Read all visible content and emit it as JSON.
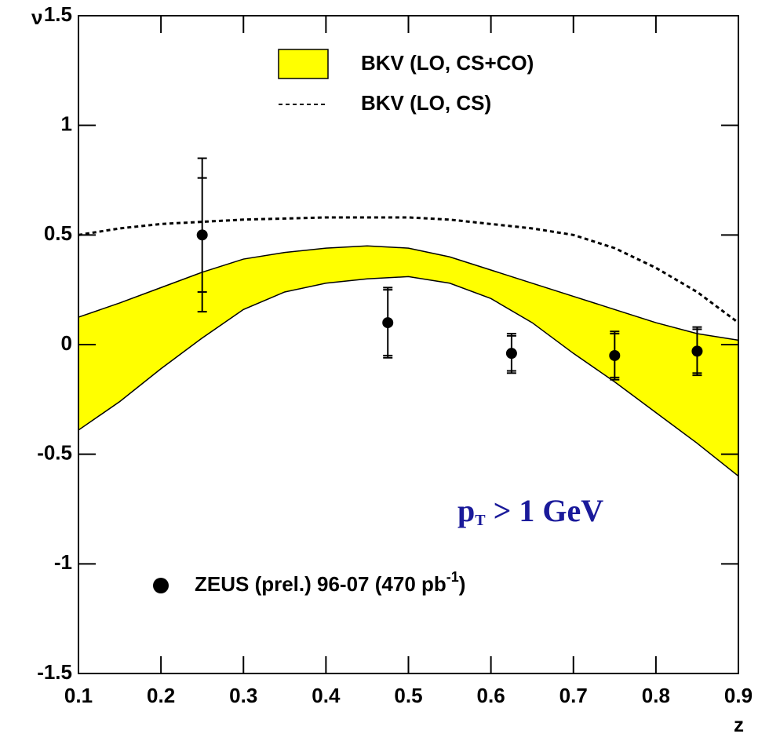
{
  "chart_data": {
    "type": "line",
    "y_label": "ν",
    "x_label": "z",
    "xlim": [
      0.1,
      0.9
    ],
    "ylim": [
      -1.5,
      1.5
    ],
    "xticks": [
      0.1,
      0.2,
      0.3,
      0.4,
      0.5,
      0.6,
      0.7,
      0.8,
      0.9
    ],
    "yticks": [
      -1.5,
      -1,
      -0.5,
      0,
      0.5,
      1,
      1.5
    ],
    "annotation": {
      "base": "p",
      "subscript": "T",
      "text": "> 1 GeV",
      "color": "#1a1a9a"
    },
    "series": [
      {
        "name": "BKV (LO, CS+CO)",
        "type": "band",
        "color": "#ffff00",
        "x": [
          0.1,
          0.15,
          0.2,
          0.25,
          0.3,
          0.35,
          0.4,
          0.45,
          0.5,
          0.55,
          0.6,
          0.65,
          0.7,
          0.75,
          0.8,
          0.85,
          0.9
        ],
        "upper": [
          0.125,
          0.19,
          0.26,
          0.33,
          0.39,
          0.42,
          0.44,
          0.45,
          0.44,
          0.4,
          0.34,
          0.28,
          0.22,
          0.16,
          0.1,
          0.05,
          0.02
        ],
        "lower": [
          -0.39,
          -0.26,
          -0.11,
          0.03,
          0.16,
          0.24,
          0.28,
          0.3,
          0.31,
          0.28,
          0.21,
          0.1,
          -0.04,
          -0.17,
          -0.31,
          -0.45,
          -0.6
        ]
      },
      {
        "name": "BKV (LO, CS)",
        "type": "line",
        "color": "#000000",
        "dashed": true,
        "x": [
          0.1,
          0.15,
          0.2,
          0.25,
          0.3,
          0.35,
          0.4,
          0.45,
          0.5,
          0.55,
          0.6,
          0.65,
          0.7,
          0.75,
          0.8,
          0.85,
          0.9
        ],
        "values": [
          0.5,
          0.53,
          0.55,
          0.56,
          0.57,
          0.575,
          0.58,
          0.58,
          0.58,
          0.57,
          0.55,
          0.53,
          0.5,
          0.44,
          0.35,
          0.24,
          0.1
        ]
      },
      {
        "name": "ZEUS (prel.) 96-07 (470 pb",
        "name_superscript": "-1",
        "name_suffix": ")",
        "type": "points",
        "color": "#000000",
        "x": [
          0.25,
          0.475,
          0.625,
          0.75,
          0.85
        ],
        "values": [
          0.5,
          0.1,
          -0.04,
          -0.05,
          -0.03
        ],
        "stat_errors": [
          0.26,
          0.15,
          0.08,
          0.1,
          0.1
        ],
        "total_errors": [
          0.35,
          0.16,
          0.09,
          0.11,
          0.11
        ]
      }
    ]
  }
}
